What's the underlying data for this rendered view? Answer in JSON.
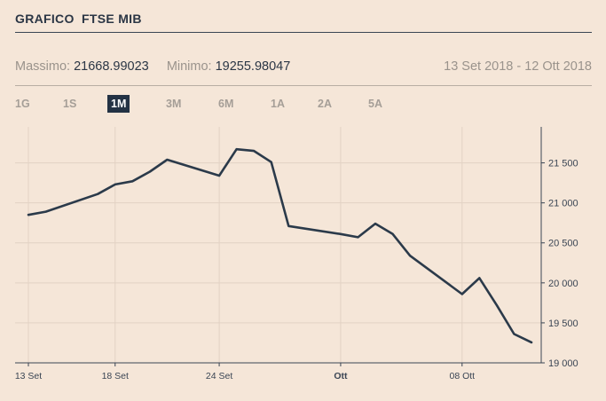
{
  "header": {
    "title": "GRAFICO  FTSE MIB"
  },
  "stats": {
    "max_label": "Massimo:",
    "max_value": "21668.99023",
    "min_label": "Minimo:",
    "min_value": "19255.98047",
    "range": "13 Set 2018 - 12 Ott 2018"
  },
  "periods": [
    {
      "label": "1G",
      "active": false
    },
    {
      "label": "1S",
      "active": false
    },
    {
      "label": "1M",
      "active": true
    },
    {
      "label": "3M",
      "active": false
    },
    {
      "label": "6M",
      "active": false
    },
    {
      "label": "1A",
      "active": false
    },
    {
      "label": "2A",
      "active": false
    },
    {
      "label": "5A",
      "active": false
    }
  ],
  "colors": {
    "background": "#f5e6d8",
    "line": "#2b3a4a",
    "grid": "#e2d2c4",
    "active_tab": "#233244"
  },
  "chart_data": {
    "type": "line",
    "title": "",
    "xlabel": "",
    "ylabel": "",
    "x_ticks": [
      {
        "date": "2018-09-13",
        "label": "13 Set",
        "bold": false
      },
      {
        "date": "2018-09-18",
        "label": "18 Set",
        "bold": false
      },
      {
        "date": "2018-09-24",
        "label": "24 Set",
        "bold": false
      },
      {
        "date": "2018-10-01",
        "label": "Ott",
        "bold": true
      },
      {
        "date": "2018-10-08",
        "label": "08 Ott",
        "bold": false
      }
    ],
    "y_ticks": [
      {
        "value": 19000,
        "label": "19 000"
      },
      {
        "value": 19500,
        "label": "19 500"
      },
      {
        "value": 20000,
        "label": "20 000"
      },
      {
        "value": 20500,
        "label": "20 500"
      },
      {
        "value": 21000,
        "label": "21 000"
      },
      {
        "value": 21500,
        "label": "21 500"
      }
    ],
    "xlim": [
      "2018-09-13",
      "2018-10-12"
    ],
    "ylim": [
      19000,
      21950
    ],
    "grid": true,
    "series": [
      {
        "x": [
          "2018-09-13",
          "2018-09-14",
          "2018-09-17",
          "2018-09-18",
          "2018-09-19",
          "2018-09-20",
          "2018-09-21",
          "2018-09-24",
          "2018-09-25",
          "2018-09-26",
          "2018-09-27",
          "2018-09-28",
          "2018-10-01",
          "2018-10-02",
          "2018-10-03",
          "2018-10-04",
          "2018-10-05",
          "2018-10-08",
          "2018-10-09",
          "2018-10-10",
          "2018-10-11",
          "2018-10-12"
        ],
        "y": [
          20850,
          20890,
          21110,
          21230,
          21270,
          21390,
          21540,
          21340,
          21670,
          21650,
          21510,
          20710,
          20610,
          20570,
          20740,
          20610,
          20340,
          19860,
          20060,
          19720,
          19360,
          19256
        ]
      }
    ]
  }
}
